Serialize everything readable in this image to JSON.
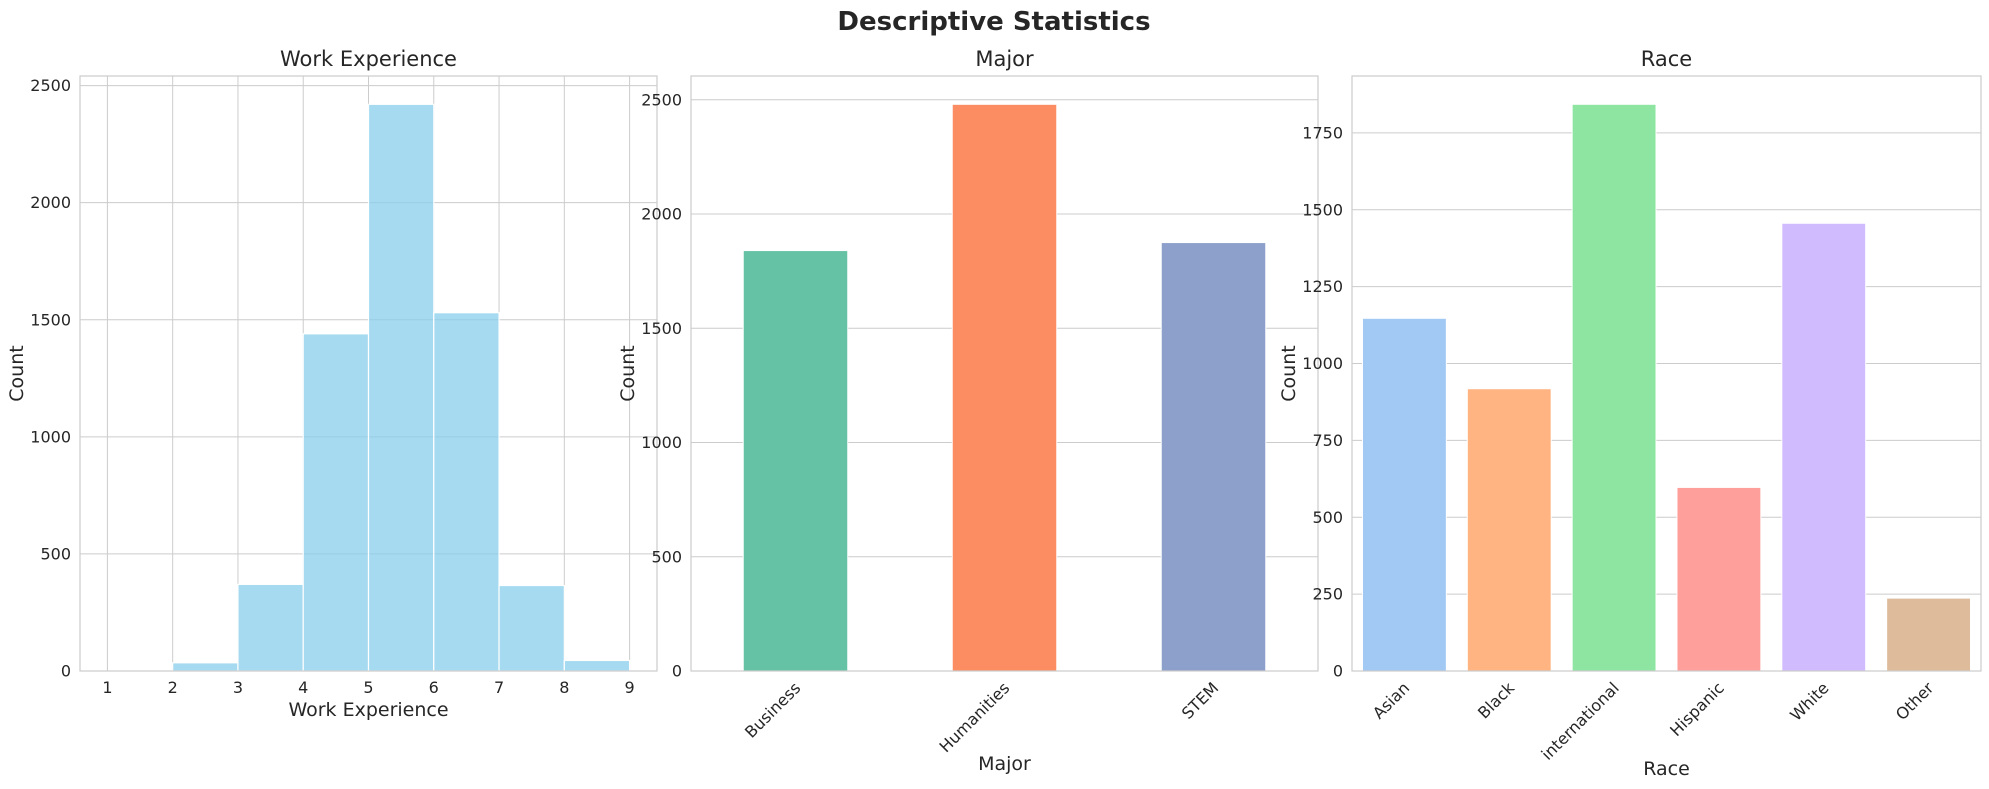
{
  "figure_title": "Descriptive Statistics",
  "chart_data": [
    {
      "type": "histogram",
      "title": "Work Experience",
      "xlabel": "Work Experience",
      "ylabel": "Count",
      "bins": [
        {
          "start": 1,
          "end": 2,
          "count": 0
        },
        {
          "start": 2,
          "end": 3,
          "count": 35
        },
        {
          "start": 3,
          "end": 4,
          "count": 370
        },
        {
          "start": 4,
          "end": 5,
          "count": 1440
        },
        {
          "start": 5,
          "end": 6,
          "count": 2420
        },
        {
          "start": 6,
          "end": 7,
          "count": 1530
        },
        {
          "start": 7,
          "end": 8,
          "count": 365
        },
        {
          "start": 8,
          "end": 9,
          "count": 45
        }
      ],
      "xticks": [
        "1",
        "2",
        "3",
        "4",
        "5",
        "6",
        "7",
        "8",
        "9"
      ],
      "yticks": [
        "0",
        "500",
        "1000",
        "1500",
        "2000",
        "2500"
      ],
      "xlim": [
        0.58,
        9.42
      ],
      "ylim": [
        0,
        2541
      ],
      "color": "#87CEEB",
      "vertical_grid": true
    },
    {
      "type": "bar",
      "title": "Major",
      "xlabel": "Major",
      "ylabel": "Count",
      "categories": [
        "Business",
        "Humanities",
        "STEM"
      ],
      "values": [
        1840,
        2480,
        1875
      ],
      "colors": [
        "#66c2a5",
        "#fc8d62",
        "#8da0cb"
      ],
      "yticks": [
        "0",
        "500",
        "1000",
        "1500",
        "2000",
        "2500"
      ],
      "ylim": [
        0,
        2604
      ],
      "vertical_grid": false
    },
    {
      "type": "bar",
      "title": "Race",
      "xlabel": "Race",
      "ylabel": "Count",
      "categories": [
        "Asian",
        "Black",
        "international",
        "Hispanic",
        "White",
        "Other"
      ],
      "values": [
        1147,
        918,
        1843,
        597,
        1456,
        237
      ],
      "colors": [
        "#a1c9f4",
        "#ffb482",
        "#8de5a1",
        "#ff9f9b",
        "#d0bbff",
        "#debb9b"
      ],
      "yticks": [
        "0",
        "250",
        "500",
        "750",
        "1000",
        "1250",
        "1500",
        "1750"
      ],
      "ylim": [
        0,
        1935
      ],
      "vertical_grid": false
    }
  ]
}
